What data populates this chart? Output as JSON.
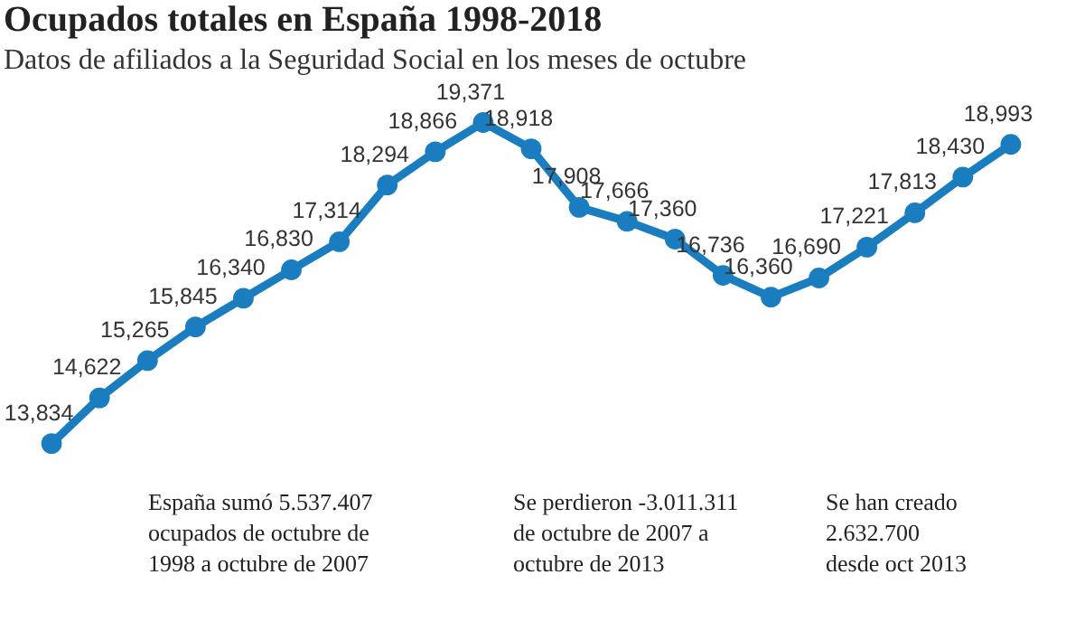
{
  "chart_data": {
    "type": "line",
    "title": "Ocupados totales en España 1998-2018",
    "subtitle": "Datos de afiliados a la Seguridad Social en los meses de octubre",
    "categories": [
      null,
      null,
      null,
      null,
      null,
      null,
      null,
      null,
      null,
      null,
      null,
      null,
      null,
      null,
      null,
      null,
      null,
      null,
      null,
      null,
      null
    ],
    "series": [
      {
        "color": "#1a7dc0",
        "values": [
          13834,
          14622,
          15265,
          15845,
          16340,
          16830,
          17314,
          18294,
          18866,
          19371,
          18918,
          17908,
          17666,
          17360,
          16736,
          16360,
          16690,
          17221,
          17813,
          18430,
          18993
        ],
        "value_labels": [
          "13,834",
          "14,622",
          "15,265",
          "15,845",
          "16,340",
          "16,830",
          "17,314",
          "18,294",
          "18,866",
          "19,371",
          "18,918",
          "17,908",
          "17,666",
          "17,360",
          "16,736",
          "16,360",
          "16,690",
          "17,221",
          "17,813",
          "18,430",
          "18,993"
        ]
      }
    ],
    "marker": "circle",
    "line_style": "solid",
    "annotations": [
      "España sumó 5.537.407\nocupados de octubre de\n1998 a octubre de 2007",
      "Se perdieron -3.011.311\nde octubre de 2007 a\noctubre de 2013",
      "Se han creado\n2.632.700\ndesde oct 2013"
    ]
  }
}
